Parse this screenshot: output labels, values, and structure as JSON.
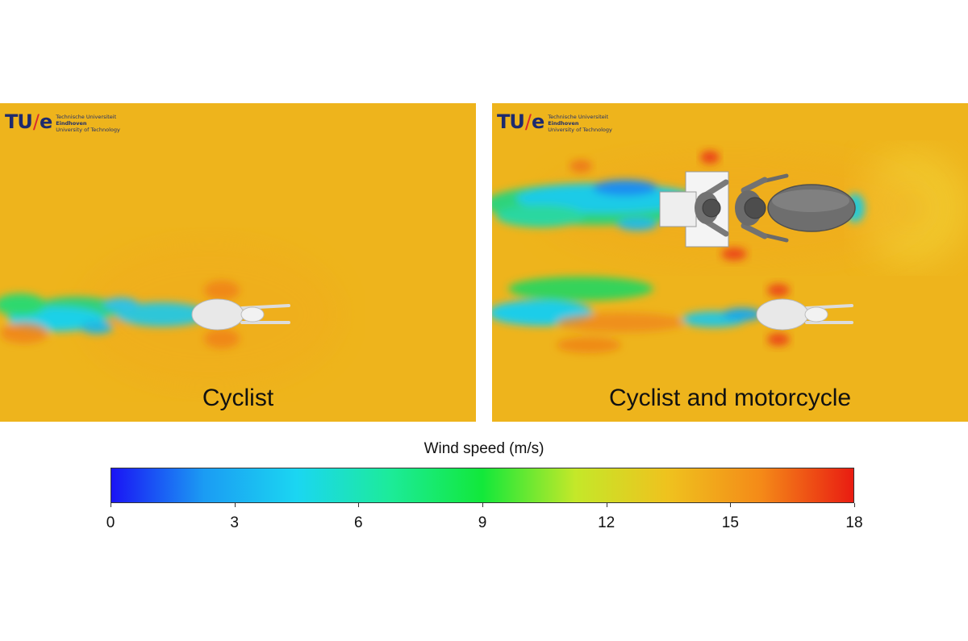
{
  "chart_data": {
    "type": "heatmap",
    "title": "Wind speed (m/s)",
    "colorbar": {
      "label": "Wind speed (m/s)",
      "range": [
        0,
        18
      ],
      "ticks": [
        0,
        3,
        6,
        9,
        12,
        15,
        18
      ],
      "colors": [
        "#1a14f5",
        "#1b9cf3",
        "#1bd6f2",
        "#1ceb9a",
        "#12e83a",
        "#c4e829",
        "#efc21e",
        "#f48a18",
        "#e91c12"
      ]
    },
    "free_stream_speed": 14,
    "panels": [
      {
        "label": "Cyclist",
        "subjects": [
          "cyclist"
        ]
      },
      {
        "label": "Cyclist and motorcycle",
        "subjects": [
          "motorcycle",
          "cyclist"
        ]
      }
    ]
  },
  "logo": {
    "mark_tu": "TU",
    "mark_slash": "/",
    "mark_e": "e",
    "line1": "Technische Universiteit",
    "line2": "Eindhoven",
    "line3": "University of Technology"
  }
}
